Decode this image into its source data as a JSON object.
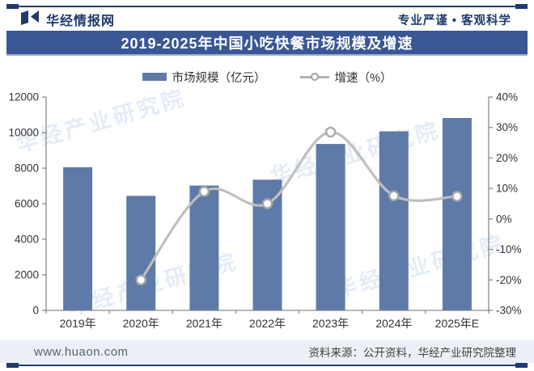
{
  "header": {
    "brand": "华经情报网",
    "slogan": "专业严谨 • 客观科学"
  },
  "title": "2019-2025年中国小吃快餐市场规模及增速",
  "legend": {
    "bar_label": "市场规模（亿元）",
    "line_label": "增速（%）"
  },
  "watermark": "华经产业研究院",
  "footer": {
    "website": "www.huaon.com",
    "source": "资料来源：公开资料，华经产业研究院整理"
  },
  "colors": {
    "bar": "#5e7aa8",
    "line": "#bfbfbf",
    "marker_fill": "#ffffff",
    "marker_stroke": "#a9a9a9",
    "banner_bg": "#3a5795",
    "accent_dark": "#1e3a6e",
    "footer_bg": "#ecf0f6",
    "axis": "#8a8a8a"
  },
  "chart_data": {
    "type": "bar",
    "subtype": "bar+line combo, dual axis",
    "title": "2019-2025年中国小吃快餐市场规模及增速",
    "categories": [
      "2019年",
      "2020年",
      "2021年",
      "2022年",
      "2023年",
      "2024年",
      "2025年E"
    ],
    "series": [
      {
        "name": "市场规模（亿元）",
        "type": "bar",
        "axis": "left",
        "values": [
          8050,
          6440,
          7020,
          7350,
          9360,
          10070,
          10820
        ]
      },
      {
        "name": "增速（%）",
        "type": "line",
        "axis": "right",
        "values": [
          null,
          -20.0,
          9.0,
          5.0,
          28.5,
          7.6,
          7.4
        ]
      }
    ],
    "left_axis": {
      "min": 0,
      "max": 12000,
      "step": 2000,
      "ticks": [
        "0",
        "2000",
        "4000",
        "6000",
        "8000",
        "10000",
        "12000"
      ]
    },
    "right_axis": {
      "min": -30,
      "max": 40,
      "step": 10,
      "ticks": [
        "-30%",
        "-20%",
        "-10%",
        "0%",
        "10%",
        "20%",
        "30%",
        "40%"
      ]
    },
    "grid": "off",
    "legend_position": "top-center"
  }
}
